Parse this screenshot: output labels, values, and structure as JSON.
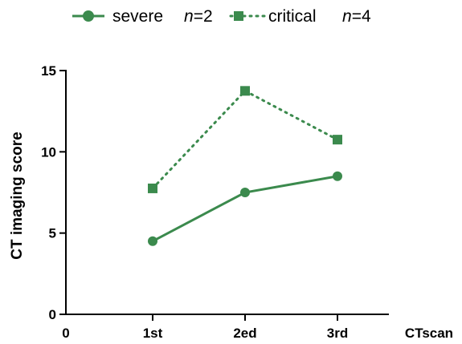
{
  "chart_data": {
    "type": "line",
    "categories": [
      "1st",
      "2ed",
      "3rd"
    ],
    "x_origin_label": "0",
    "xlabel": "CTscan",
    "ylabel": "CT imaging score",
    "ylim": [
      0,
      15
    ],
    "yticks": [
      0,
      5,
      10,
      15
    ],
    "grid": false,
    "legend_position": "top",
    "colors": {
      "series": "#3b8a4d",
      "axis": "#000000"
    },
    "series": [
      {
        "name": "severe",
        "n_label": "n",
        "n_value": "=2",
        "marker": "circle",
        "line_style": "solid",
        "values": [
          4.5,
          7.5,
          8.5
        ]
      },
      {
        "name": "critical",
        "n_label": "n",
        "n_value": "=4",
        "marker": "square",
        "line_style": "dotted",
        "values": [
          7.75,
          13.75,
          10.75
        ]
      }
    ]
  }
}
